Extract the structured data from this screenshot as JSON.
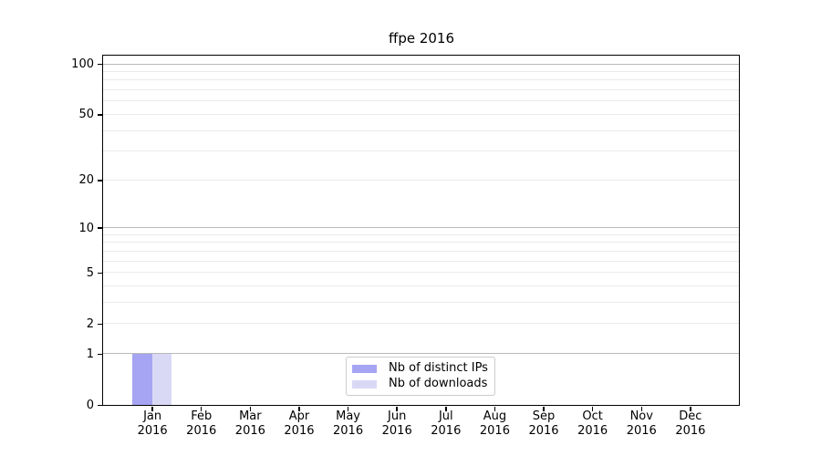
{
  "figure": {
    "title": "ffpe 2016"
  },
  "chart_data": {
    "type": "bar",
    "title": "ffpe 2016",
    "x": {
      "months": [
        "Jan",
        "Feb",
        "Mar",
        "Apr",
        "May",
        "Jun",
        "Jul",
        "Aug",
        "Sep",
        "Oct",
        "Nov",
        "Dec"
      ],
      "year": "2016",
      "categories": [
        "Jan 2016",
        "Feb 2016",
        "Mar 2016",
        "Apr 2016",
        "May 2016",
        "Jun 2016",
        "Jul 2016",
        "Aug 2016",
        "Sep 2016",
        "Oct 2016",
        "Nov 2016",
        "Dec 2016"
      ]
    },
    "series": [
      {
        "name": "Nb of distinct IPs",
        "color": "#a5a5f3",
        "values": [
          1,
          0,
          0,
          0,
          0,
          0,
          0,
          0,
          0,
          0,
          0,
          0
        ]
      },
      {
        "name": "Nb of downloads",
        "color": "#d9d9f6",
        "values": [
          1,
          0,
          0,
          0,
          0,
          0,
          0,
          0,
          0,
          0,
          0,
          0
        ]
      }
    ],
    "y_axis": {
      "scale": "log10(1+y)",
      "tick_values": [
        0,
        1,
        2,
        5,
        10,
        20,
        50,
        100
      ],
      "tick_labels": [
        "0",
        "1",
        "2",
        "5",
        "10",
        "20",
        "50",
        "100"
      ],
      "minor_gridline_values": [
        3,
        4,
        6,
        7,
        8,
        9,
        30,
        40,
        60,
        70,
        80,
        90
      ],
      "decade_values": [
        1,
        10,
        100
      ],
      "ylim": [
        0,
        112
      ]
    },
    "legend": {
      "position": "bottom-center",
      "entries": [
        "Nb of distinct IPs",
        "Nb of downloads"
      ]
    },
    "grid": "horizontal-only"
  },
  "colors": {
    "background": "#ffffff",
    "axis": "#000000",
    "grid_major": "#b9b9b9",
    "grid_minor": "#eaeaea",
    "legend_border": "#cccccc",
    "text": "#000000"
  }
}
